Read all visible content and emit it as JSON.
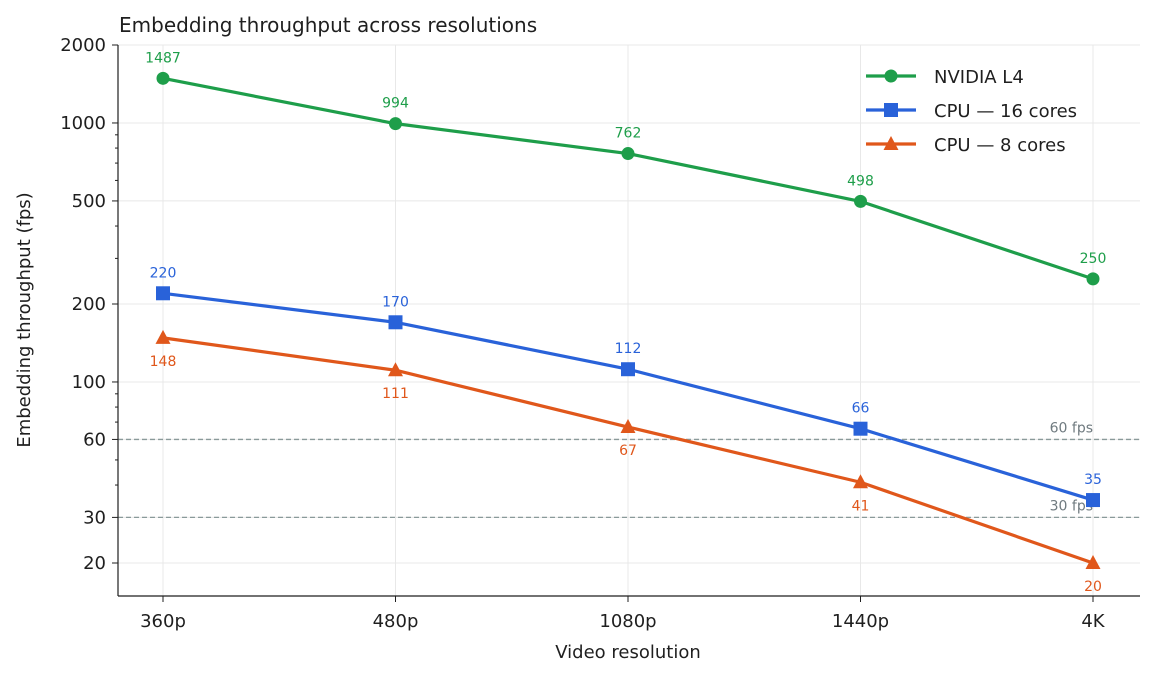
{
  "chart_data": {
    "type": "line",
    "title": "Embedding throughput across resolutions",
    "xlabel": "Video resolution",
    "ylabel": "Embedding throughput (fps)",
    "categories": [
      "360p",
      "480p",
      "1080p",
      "1440p",
      "4K"
    ],
    "y_scale": "log",
    "ylim": [
      15,
      2000
    ],
    "y_ticks": [
      20,
      30,
      60,
      100,
      200,
      500,
      1000,
      2000
    ],
    "grid": true,
    "legend_position": "top-right",
    "series": [
      {
        "name": "NVIDIA L4",
        "color": "#1e9e4a",
        "marker": "circle",
        "values": [
          1487,
          994,
          762,
          498,
          250
        ],
        "label_position": "above"
      },
      {
        "name": "CPU — 16 cores",
        "color": "#2962d9",
        "marker": "square",
        "values": [
          220,
          170,
          112,
          66,
          35
        ],
        "label_position": "above"
      },
      {
        "name": "CPU — 8 cores",
        "color": "#e0571b",
        "marker": "triangle",
        "values": [
          148,
          111,
          67,
          41,
          20
        ],
        "label_position": "below"
      }
    ],
    "reference_lines": [
      {
        "value": 60,
        "label": "60 fps",
        "color": "#8a9a9a"
      },
      {
        "value": 30,
        "label": "30 fps",
        "color": "#8a9a9a"
      }
    ]
  }
}
